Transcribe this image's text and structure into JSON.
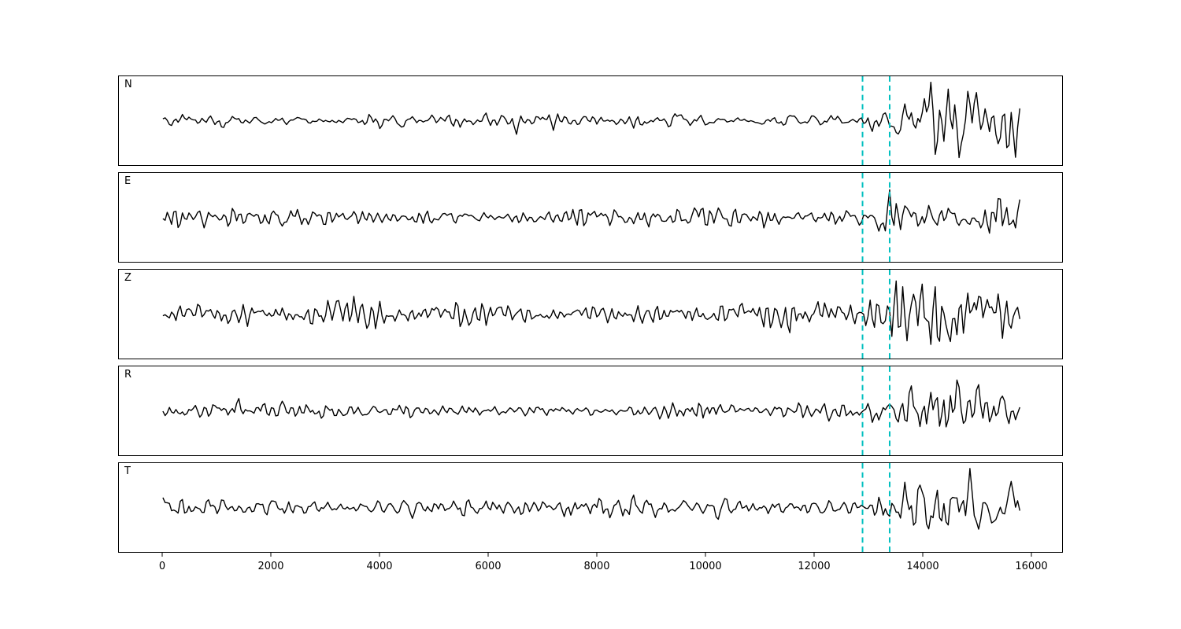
{
  "figure": {
    "background": "#ffffff",
    "panels": [
      {
        "label": "N",
        "seed": 11,
        "base_amp": 9,
        "late_amp": 36
      },
      {
        "label": "E",
        "seed": 22,
        "base_amp": 11,
        "late_amp": 40
      },
      {
        "label": "Z",
        "seed": 33,
        "base_amp": 15,
        "late_amp": 40
      },
      {
        "label": "R",
        "seed": 44,
        "base_amp": 9,
        "late_amp": 36
      },
      {
        "label": "T",
        "seed": 55,
        "base_amp": 13,
        "late_amp": 42
      }
    ]
  },
  "chart_data": {
    "type": "line",
    "title": "",
    "xlabel": "",
    "ylabel": "",
    "panels": [
      "N",
      "E",
      "Z",
      "R",
      "T"
    ],
    "series": [
      {
        "name": "N",
        "description": "band-limited seismic noise, amplitude ~±9 px units until x≈12900, growing ~4x after x≈13400"
      },
      {
        "name": "E",
        "description": "band-limited seismic noise, amplitude ~±11 until x≈12900, growing ~4x after x≈13400"
      },
      {
        "name": "Z",
        "description": "band-limited seismic noise, larger background amplitude ~±15, growing ~3x after x≈13400"
      },
      {
        "name": "R",
        "description": "band-limited seismic noise, amplitude ~±9 until x≈12900, growing ~4x after x≈13400"
      },
      {
        "name": "T",
        "description": "band-limited seismic noise, amplitude ~±13 until x≈12900, growing ~3x after x≈13400"
      }
    ],
    "x_range": [
      0,
      15800
    ],
    "xlim": [
      -800,
      16600
    ],
    "x_ticks": [
      0,
      2000,
      4000,
      6000,
      8000,
      10000,
      12000,
      14000,
      16000
    ],
    "vlines": [
      12900,
      13400
    ],
    "vline_style": "dashed",
    "vline_color": "#00bfbf",
    "trace_color": "#000000",
    "grid": false,
    "legend": false,
    "y_ticks": "none"
  }
}
